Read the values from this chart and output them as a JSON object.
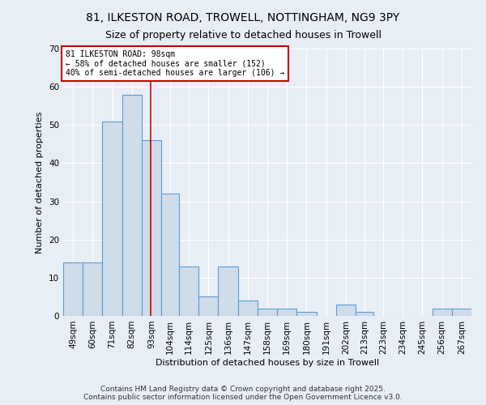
{
  "title_line1": "81, ILKESTON ROAD, TROWELL, NOTTINGHAM, NG9 3PY",
  "title_line2": "Size of property relative to detached houses in Trowell",
  "xlabel": "Distribution of detached houses by size in Trowell",
  "ylabel": "Number of detached properties",
  "bin_labels": [
    "49sqm",
    "60sqm",
    "71sqm",
    "82sqm",
    "93sqm",
    "104sqm",
    "114sqm",
    "125sqm",
    "136sqm",
    "147sqm",
    "158sqm",
    "169sqm",
    "180sqm",
    "191sqm",
    "202sqm",
    "213sqm",
    "223sqm",
    "234sqm",
    "245sqm",
    "256sqm",
    "267sqm"
  ],
  "bin_edges": [
    49,
    60,
    71,
    82,
    93,
    104,
    114,
    125,
    136,
    147,
    158,
    169,
    180,
    191,
    202,
    213,
    223,
    234,
    245,
    256,
    267,
    278
  ],
  "values": [
    14,
    14,
    51,
    58,
    46,
    32,
    13,
    5,
    13,
    4,
    2,
    2,
    1,
    0,
    3,
    1,
    0,
    0,
    0,
    2,
    2
  ],
  "bar_color": "#cfdcea",
  "bar_edge_color": "#5b9bd5",
  "property_value": 98,
  "annotation_line1": "81 ILKESTON ROAD: 98sqm",
  "annotation_line2": "← 58% of detached houses are smaller (152)",
  "annotation_line3": "40% of semi-detached houses are larger (106) →",
  "annotation_box_color": "#ffffff",
  "annotation_box_edge_color": "#cc0000",
  "marker_line_color": "#cc0000",
  "ylim": [
    0,
    70
  ],
  "yticks": [
    0,
    10,
    20,
    30,
    40,
    50,
    60,
    70
  ],
  "background_color": "#e8eef5",
  "footer_line1": "Contains HM Land Registry data © Crown copyright and database right 2025.",
  "footer_line2": "Contains public sector information licensed under the Open Government Licence v3.0.",
  "title_fontsize": 10,
  "subtitle_fontsize": 9
}
